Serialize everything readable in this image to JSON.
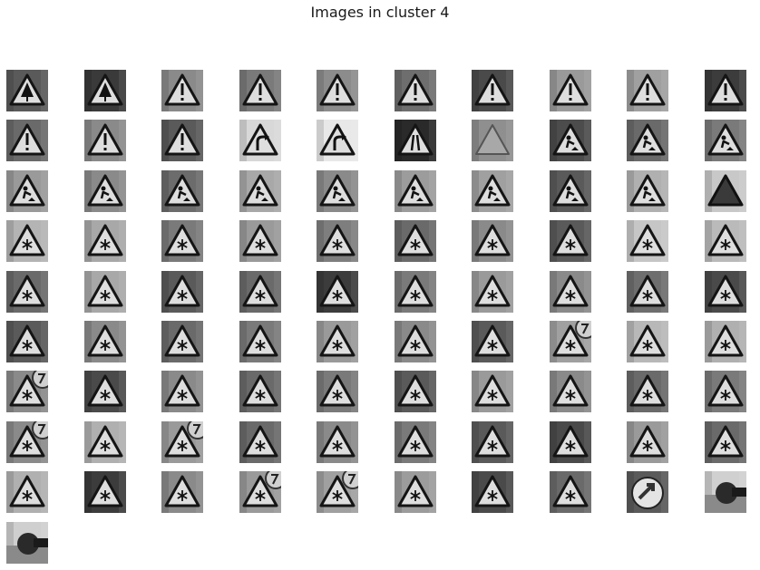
{
  "figure": {
    "title": "Images in cluster 4"
  },
  "grid": {
    "rows": 10,
    "cols": 10,
    "tiles": [
      {
        "symbol": "tree",
        "bg": "#5a5a5a"
      },
      {
        "symbol": "tree",
        "bg": "#3a3a3a"
      },
      {
        "symbol": "exclaim",
        "bg": "#8a8a8a"
      },
      {
        "symbol": "exclaim",
        "bg": "#7a7a7a"
      },
      {
        "symbol": "exclaim",
        "bg": "#8c8c8c"
      },
      {
        "symbol": "exclaim",
        "bg": "#6e6e6e"
      },
      {
        "symbol": "exclaim",
        "bg": "#4a4a4a"
      },
      {
        "symbol": "exclaim",
        "bg": "#9a9a9a"
      },
      {
        "symbol": "exclaim",
        "bg": "#a0a0a0"
      },
      {
        "symbol": "exclaim",
        "bg": "#3c3c3c"
      },
      {
        "symbol": "exclaim",
        "bg": "#6a6a6a"
      },
      {
        "symbol": "exclaim",
        "bg": "#8a8a8a"
      },
      {
        "symbol": "exclaim",
        "bg": "#5a5a5a"
      },
      {
        "symbol": "curve",
        "bg": "#d8d8d8"
      },
      {
        "symbol": "curve",
        "bg": "#e8e8e8"
      },
      {
        "symbol": "narrow",
        "bg": "#2a2a2a"
      },
      {
        "symbol": "blur",
        "bg": "#8f8f8f"
      },
      {
        "symbol": "work",
        "bg": "#4c4c4c"
      },
      {
        "symbol": "work",
        "bg": "#6a6a6a"
      },
      {
        "symbol": "work",
        "bg": "#7a7a7a"
      },
      {
        "symbol": "work",
        "bg": "#9a9a9a"
      },
      {
        "symbol": "work",
        "bg": "#8a8a8a"
      },
      {
        "symbol": "work",
        "bg": "#6c6c6c"
      },
      {
        "symbol": "work",
        "bg": "#a8a8a8"
      },
      {
        "symbol": "work",
        "bg": "#8a8a8a"
      },
      {
        "symbol": "work",
        "bg": "#9c9c9c"
      },
      {
        "symbol": "work",
        "bg": "#a0a0a0"
      },
      {
        "symbol": "work",
        "bg": "#5a5a5a"
      },
      {
        "symbol": "work",
        "bg": "#b0b0b0"
      },
      {
        "symbol": "dark",
        "bg": "#c8c8c8"
      },
      {
        "symbol": "snow",
        "bg": "#b4b4b4"
      },
      {
        "symbol": "snow",
        "bg": "#a8a8a8"
      },
      {
        "symbol": "snow",
        "bg": "#7a7a7a"
      },
      {
        "symbol": "snow",
        "bg": "#9a9a9a"
      },
      {
        "symbol": "snow",
        "bg": "#7e7e7e"
      },
      {
        "symbol": "snow",
        "bg": "#6a6a6a"
      },
      {
        "symbol": "snow",
        "bg": "#8a8a8a"
      },
      {
        "symbol": "snow",
        "bg": "#5a5a5a"
      },
      {
        "symbol": "snow",
        "bg": "#c6c6c6"
      },
      {
        "symbol": "snow",
        "bg": "#bababa"
      },
      {
        "symbol": "snow",
        "bg": "#6a6a6a"
      },
      {
        "symbol": "snow",
        "bg": "#a8a8a8"
      },
      {
        "symbol": "snow",
        "bg": "#5a5a5a"
      },
      {
        "symbol": "snow",
        "bg": "#6a6a6a"
      },
      {
        "symbol": "snow",
        "bg": "#3c3c3c"
      },
      {
        "symbol": "snow",
        "bg": "#7a7a7a"
      },
      {
        "symbol": "snow",
        "bg": "#9a9a9a"
      },
      {
        "symbol": "snow",
        "bg": "#8a8a8a"
      },
      {
        "symbol": "snow",
        "bg": "#6e6e6e"
      },
      {
        "symbol": "snow",
        "bg": "#4a4a4a"
      },
      {
        "symbol": "snow",
        "bg": "#5a5a5a"
      },
      {
        "symbol": "snow",
        "bg": "#8a8a8a"
      },
      {
        "symbol": "snow",
        "bg": "#6a6a6a"
      },
      {
        "symbol": "snow",
        "bg": "#7a7a7a"
      },
      {
        "symbol": "snow",
        "bg": "#9a9a9a"
      },
      {
        "symbol": "snow",
        "bg": "#8a8a8a"
      },
      {
        "symbol": "snow",
        "bg": "#5a5a5a"
      },
      {
        "symbol": "snow70",
        "bg": "#a0a0a0"
      },
      {
        "symbol": "snow",
        "bg": "#b8b8b8"
      },
      {
        "symbol": "snow",
        "bg": "#b0b0b0"
      },
      {
        "symbol": "snow70",
        "bg": "#8a8a8a"
      },
      {
        "symbol": "snow",
        "bg": "#4a4a4a"
      },
      {
        "symbol": "snow",
        "bg": "#8a8a8a"
      },
      {
        "symbol": "snow",
        "bg": "#6a6a6a"
      },
      {
        "symbol": "snow",
        "bg": "#7a7a7a"
      },
      {
        "symbol": "snow",
        "bg": "#5a5a5a"
      },
      {
        "symbol": "snow",
        "bg": "#9a9a9a"
      },
      {
        "symbol": "snow",
        "bg": "#8a8a8a"
      },
      {
        "symbol": "snow",
        "bg": "#6a6a6a"
      },
      {
        "symbol": "snow",
        "bg": "#7a7a7a"
      },
      {
        "symbol": "snow70",
        "bg": "#8a8a8a"
      },
      {
        "symbol": "snow",
        "bg": "#b0b0b0"
      },
      {
        "symbol": "snow70",
        "bg": "#9a9a9a"
      },
      {
        "symbol": "snow",
        "bg": "#6a6a6a"
      },
      {
        "symbol": "snow",
        "bg": "#8a8a8a"
      },
      {
        "symbol": "snow",
        "bg": "#7a7a7a"
      },
      {
        "symbol": "snow",
        "bg": "#5a5a5a"
      },
      {
        "symbol": "snow",
        "bg": "#4a4a4a"
      },
      {
        "symbol": "snow",
        "bg": "#9a9a9a"
      },
      {
        "symbol": "snow",
        "bg": "#6a6a6a"
      },
      {
        "symbol": "snow",
        "bg": "#b0b0b0"
      },
      {
        "symbol": "snow",
        "bg": "#3c3c3c"
      },
      {
        "symbol": "snow",
        "bg": "#8a8a8a"
      },
      {
        "symbol": "snow70",
        "bg": "#9a9a9a"
      },
      {
        "symbol": "snow70",
        "bg": "#a0a0a0"
      },
      {
        "symbol": "snow",
        "bg": "#9c9c9c"
      },
      {
        "symbol": "snow",
        "bg": "#4a4a4a"
      },
      {
        "symbol": "snow",
        "bg": "#6a6a6a"
      },
      {
        "symbol": "round",
        "bg": "#5a5a5a"
      },
      {
        "symbol": "blob",
        "bg": "#d0d0d0"
      },
      {
        "symbol": "blob",
        "bg": "#cfcfcf"
      }
    ]
  },
  "colors": {
    "background": "#ffffff",
    "title_text": "#1a1a1a"
  }
}
